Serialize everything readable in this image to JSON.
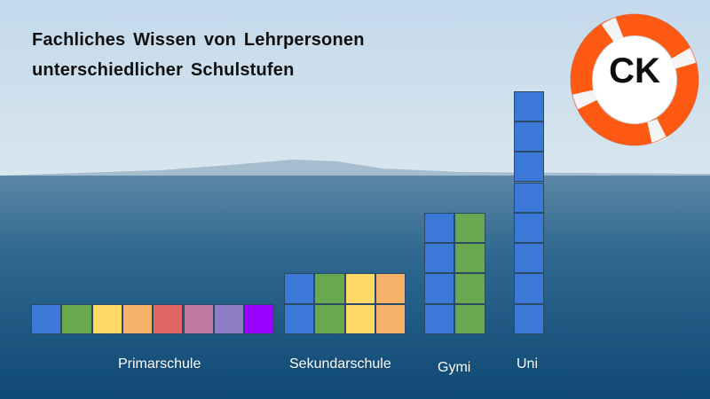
{
  "title": {
    "line1": "Fachliches Wissen von Lehrpersonen",
    "line2": "unterschiedlicher Schulstufen"
  },
  "badge": {
    "text": "CK",
    "icon": "lifebuoy-icon"
  },
  "colors": {
    "blue": "#3b78d8",
    "green": "#6aa84f",
    "yellow": "#ffd966",
    "orange": "#f6b26b",
    "red": "#e06666",
    "pink": "#c27ba0",
    "lavender": "#8e7cc3",
    "violet": "#9900ff"
  },
  "groups": [
    {
      "label": "Primarschule",
      "columns": [
        [
          "blue"
        ],
        [
          "green"
        ],
        [
          "yellow"
        ],
        [
          "orange"
        ],
        [
          "red"
        ],
        [
          "pink"
        ],
        [
          "lavender"
        ],
        [
          "violet"
        ]
      ]
    },
    {
      "label": "Sekundarschule",
      "columns": [
        [
          "blue",
          "blue"
        ],
        [
          "green",
          "green"
        ],
        [
          "yellow",
          "yellow"
        ],
        [
          "orange",
          "orange"
        ]
      ]
    },
    {
      "label": "Gymi",
      "columns": [
        [
          "blue",
          "blue",
          "blue",
          "blue"
        ],
        [
          "green",
          "green",
          "green",
          "green"
        ]
      ]
    },
    {
      "label": "Uni",
      "columns": [
        [
          "blue",
          "blue",
          "blue",
          "blue",
          "blue",
          "blue",
          "blue",
          "blue"
        ]
      ]
    }
  ]
}
